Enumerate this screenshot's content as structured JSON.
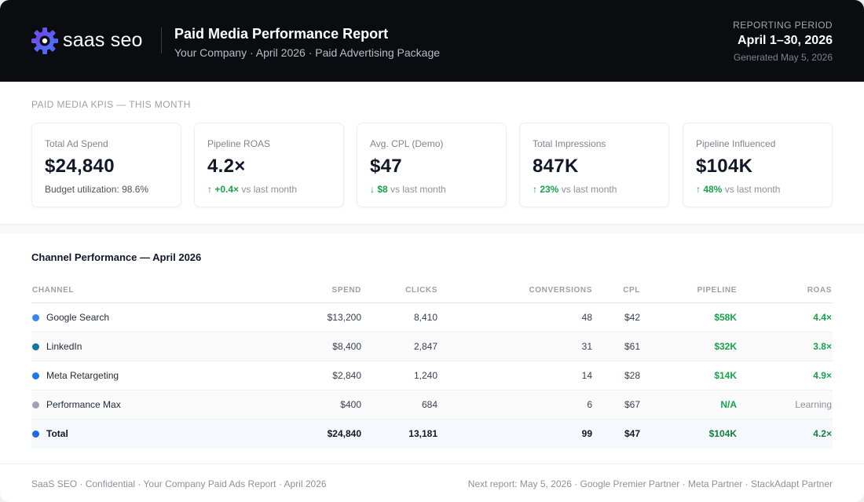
{
  "header": {
    "brand": "saas seo",
    "title": "Paid Media Performance Report",
    "subtitle": "Your Company · April 2026 · Paid Advertising Package",
    "period_label": "REPORTING PERIOD",
    "period_value": "April 1–30, 2026",
    "generated": "Generated May 5, 2026"
  },
  "kpis": {
    "section_label": "PAID MEDIA KPIS — THIS MONTH",
    "cards": [
      {
        "label": "Total Ad Spend",
        "value": "$24,840",
        "foot_text": "Budget utilization: 98.6%",
        "delta": "",
        "suffix": ""
      },
      {
        "label": "Pipeline ROAS",
        "value": "4.2×",
        "foot_text": "",
        "delta": "↑ +0.4×",
        "suffix": "vs last month"
      },
      {
        "label": "Avg. CPL (Demo)",
        "value": "$47",
        "foot_text": "",
        "delta": "↓ $8",
        "suffix": "vs last month"
      },
      {
        "label": "Total Impressions",
        "value": "847K",
        "foot_text": "",
        "delta": "↑ 23%",
        "suffix": "vs last month"
      },
      {
        "label": "Pipeline Influenced",
        "value": "$104K",
        "foot_text": "",
        "delta": "↑ 48%",
        "suffix": "vs last month"
      }
    ]
  },
  "table": {
    "title": "Channel Performance — April 2026",
    "headers": {
      "channel": "CHANNEL",
      "spend": "SPEND",
      "clicks": "CLICKS",
      "conversions": "CONVERSIONS",
      "cpl": "CPL",
      "pipeline": "PIPELINE",
      "roas": "ROAS"
    },
    "rows": [
      {
        "channel": "Google Search",
        "dot_color": "#3b82f6",
        "spend": "$13,200",
        "clicks": "8,410",
        "conversions": "48",
        "cpl": "$42",
        "pipeline": "$58K",
        "roas": "4.4×"
      },
      {
        "channel": "LinkedIn",
        "dot_color": "#0e76a8",
        "spend": "$8,400",
        "clicks": "2,847",
        "conversions": "31",
        "cpl": "$61",
        "pipeline": "$32K",
        "roas": "3.8×"
      },
      {
        "channel": "Meta Retargeting",
        "dot_color": "#1877f2",
        "spend": "$2,840",
        "clicks": "1,240",
        "conversions": "14",
        "cpl": "$28",
        "pipeline": "$14K",
        "roas": "4.9×"
      },
      {
        "channel": "Performance Max",
        "dot_color": "#9ca3af",
        "spend": "$400",
        "clicks": "684",
        "conversions": "6",
        "cpl": "$67",
        "pipeline": "N/A",
        "roas": "Learning"
      },
      {
        "channel": "Total",
        "dot_color": "#2563eb",
        "spend": "$24,840",
        "clicks": "13,181",
        "conversions": "99",
        "cpl": "$47",
        "pipeline": "$104K",
        "roas": "4.2×"
      }
    ]
  },
  "footer": {
    "left": "SaaS SEO · Confidential · Your Company Paid Ads Report · April 2026",
    "right": "Next report: May 5, 2026 · Google Premier Partner · Meta Partner · StackAdapt Partner"
  }
}
